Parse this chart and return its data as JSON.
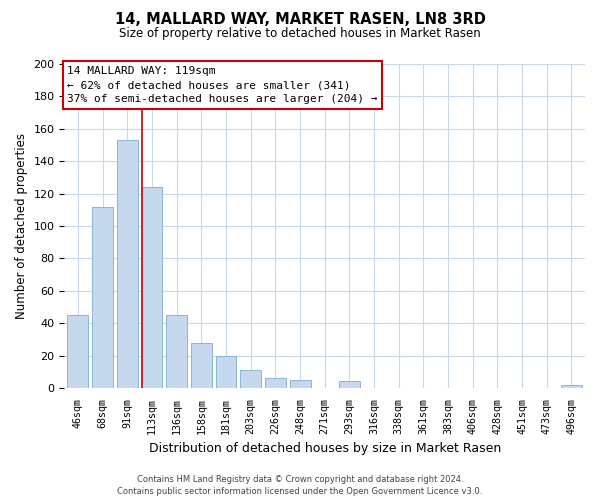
{
  "title": "14, MALLARD WAY, MARKET RASEN, LN8 3RD",
  "subtitle": "Size of property relative to detached houses in Market Rasen",
  "xlabel": "Distribution of detached houses by size in Market Rasen",
  "ylabel": "Number of detached properties",
  "bar_labels": [
    "46sqm",
    "68sqm",
    "91sqm",
    "113sqm",
    "136sqm",
    "158sqm",
    "181sqm",
    "203sqm",
    "226sqm",
    "248sqm",
    "271sqm",
    "293sqm",
    "316sqm",
    "338sqm",
    "361sqm",
    "383sqm",
    "406sqm",
    "428sqm",
    "451sqm",
    "473sqm",
    "496sqm"
  ],
  "bar_values": [
    45,
    112,
    153,
    124,
    45,
    28,
    20,
    11,
    6,
    5,
    0,
    4,
    0,
    0,
    0,
    0,
    0,
    0,
    0,
    0,
    2
  ],
  "bar_color": "#c5d8ed",
  "bar_edge_color": "#7bafd4",
  "vline_color": "#cc0000",
  "vline_x_index": 3,
  "ylim": [
    0,
    200
  ],
  "yticks": [
    0,
    20,
    40,
    60,
    80,
    100,
    120,
    140,
    160,
    180,
    200
  ],
  "annotation_title": "14 MALLARD WAY: 119sqm",
  "annotation_line1": "← 62% of detached houses are smaller (341)",
  "annotation_line2": "37% of semi-detached houses are larger (204) →",
  "annotation_box_color": "#ffffff",
  "annotation_box_edge": "#cc0000",
  "footer_line1": "Contains HM Land Registry data © Crown copyright and database right 2024.",
  "footer_line2": "Contains public sector information licensed under the Open Government Licence v3.0.",
  "bg_color": "#ffffff",
  "grid_color": "#c8d8e8"
}
